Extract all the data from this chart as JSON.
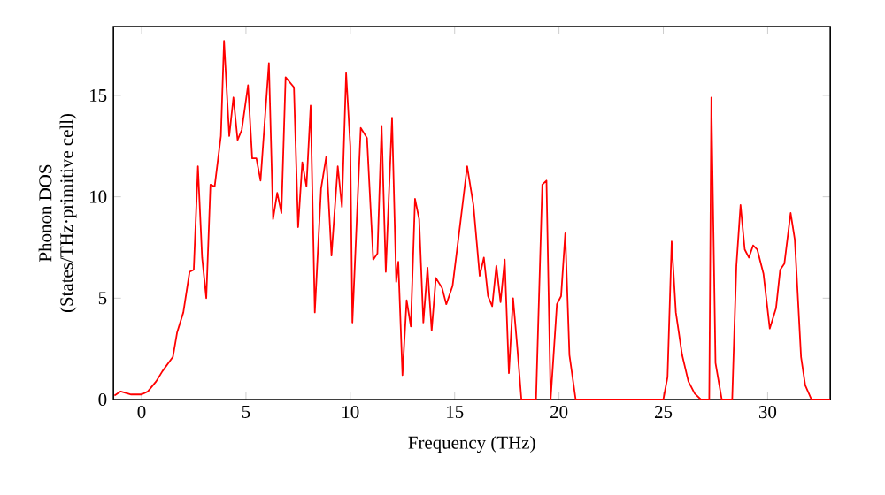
{
  "chart_data": {
    "type": "line",
    "xlabel": "Frequency (THz)",
    "ylabel": "Phonon DOS\n(States/THz·primitive cell)",
    "xlim": [
      -1.35,
      33
    ],
    "ylim": [
      0,
      18.4
    ],
    "xticks": [
      0,
      5,
      10,
      15,
      20,
      25,
      30
    ],
    "yticks": [
      0,
      5,
      10,
      15
    ],
    "grid": false,
    "marker": "none",
    "line_style": "solid",
    "series": [
      {
        "color": "#ff0000",
        "x": [
          -1.3,
          -1,
          -0.5,
          0,
          0.3,
          0.7,
          1,
          1.5,
          1.7,
          2,
          2.3,
          2.5,
          2.7,
          2.9,
          3.1,
          3.3,
          3.5,
          3.8,
          3.95,
          4.2,
          4.4,
          4.6,
          4.8,
          5.1,
          5.3,
          5.5,
          5.7,
          6.1,
          6.3,
          6.5,
          6.7,
          6.9,
          7.3,
          7.5,
          7.7,
          7.9,
          8.1,
          8.3,
          8.6,
          8.85,
          9.1,
          9.4,
          9.6,
          9.8,
          10.0,
          10.1,
          10.5,
          10.8,
          11.1,
          11.3,
          11.5,
          11.7,
          12.0,
          12.2,
          12.3,
          12.5,
          12.7,
          12.9,
          13.1,
          13.3,
          13.5,
          13.7,
          13.9,
          14.1,
          14.4,
          14.6,
          14.9,
          15.2,
          15.6,
          15.9,
          16.2,
          16.4,
          16.6,
          16.8,
          17.0,
          17.2,
          17.4,
          17.6,
          17.8,
          18.0,
          18.2,
          18.9,
          19.2,
          19.4,
          19.6,
          19.9,
          20.1,
          20.3,
          20.5,
          20.8,
          25,
          25.2,
          25.4,
          25.6,
          25.9,
          26.2,
          26.5,
          26.8,
          27.2,
          27.3,
          27.5,
          27.8,
          28.3,
          28.5,
          28.7,
          28.9,
          29.1,
          29.3,
          29.5,
          29.8,
          30.1,
          30.4,
          30.6,
          30.8,
          31.1,
          31.3,
          31.6,
          31.8,
          32.1,
          33
        ],
        "values": [
          0.2,
          0.4,
          0.25,
          0.25,
          0.4,
          0.9,
          1.4,
          2.1,
          3.3,
          4.3,
          6.3,
          6.4,
          11.5,
          7,
          5,
          10.6,
          10.5,
          13,
          17.7,
          13,
          14.9,
          12.8,
          13.3,
          15.5,
          11.9,
          11.9,
          10.8,
          16.6,
          8.9,
          10.2,
          9.2,
          15.9,
          15.4,
          8.5,
          11.7,
          10.5,
          14.5,
          4.3,
          10.4,
          12,
          7.1,
          11.5,
          9.5,
          16.1,
          12.5,
          3.8,
          13.4,
          12.9,
          6.9,
          7.2,
          13.5,
          6.3,
          13.9,
          5.8,
          6.8,
          1.2,
          4.9,
          3.6,
          9.9,
          8.9,
          3.8,
          6.5,
          3.4,
          6,
          5.5,
          4.7,
          5.6,
          8.1,
          11.5,
          9.6,
          6.1,
          7,
          5.1,
          4.6,
          6.6,
          4.8,
          6.9,
          1.3,
          5,
          2.6,
          0,
          0,
          10.6,
          10.8,
          0,
          4.7,
          5.1,
          8.2,
          2.2,
          0,
          0,
          1.1,
          7.8,
          4.3,
          2.2,
          0.9,
          0.3,
          0,
          0,
          14.9,
          1.8,
          0,
          0,
          6.6,
          9.6,
          7.4,
          7,
          7.6,
          7.4,
          6.2,
          3.5,
          4.5,
          6.4,
          6.7,
          9.2,
          7.9,
          2.1,
          0.7,
          0,
          0
        ]
      }
    ]
  }
}
